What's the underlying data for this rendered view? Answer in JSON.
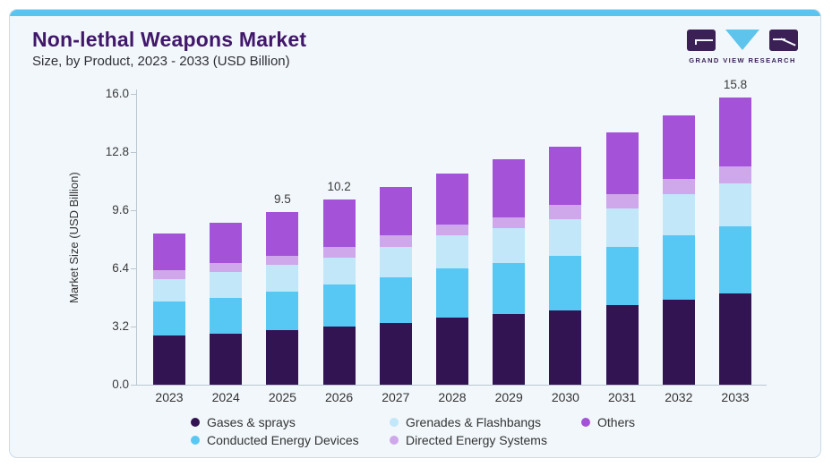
{
  "logo": {
    "text": "GRAND VIEW RESEARCH"
  },
  "colors": {
    "accent_bar": "#5ac3ee",
    "card_background": "#f2f7fb",
    "title_text": "#41176b",
    "logo_purple": "#3a2055",
    "logo_triangle": "#5ec4ec",
    "axis_line": "#b9c6d0",
    "body_text": "#333333"
  },
  "chart_data": {
    "type": "bar",
    "stacked": true,
    "title": "Non-lethal Weapons Market",
    "subtitle": "Size, by Product, 2023 - 2033 (USD Billion)",
    "xlabel": "",
    "ylabel": "Market Size (USD Billion)",
    "ylim": [
      0,
      16.0
    ],
    "ytick_values": [
      0,
      3.2,
      6.4,
      9.6,
      12.8,
      16.0
    ],
    "ytick_labels": [
      "0.0",
      "3.2",
      "6.4",
      "9.6",
      "12.8",
      "16.0"
    ],
    "grid": false,
    "legend_position": "bottom",
    "categories": [
      "2023",
      "2024",
      "2025",
      "2026",
      "2027",
      "2028",
      "2029",
      "2030",
      "2031",
      "2032",
      "2033"
    ],
    "series": [
      {
        "name": "Gases & sprays",
        "color": "#331452",
        "values": [
          2.7,
          2.8,
          3.0,
          3.2,
          3.4,
          3.7,
          3.9,
          4.1,
          4.4,
          4.7,
          5.0
        ]
      },
      {
        "name": "Conducted Energy Devices",
        "color": "#57c8f4",
        "values": [
          1.9,
          2.0,
          2.1,
          2.3,
          2.5,
          2.7,
          2.8,
          3.0,
          3.2,
          3.5,
          3.7
        ]
      },
      {
        "name": "Grenades & Flashbangs",
        "color": "#c1e7f9",
        "values": [
          1.2,
          1.4,
          1.5,
          1.5,
          1.7,
          1.8,
          1.9,
          2.0,
          2.1,
          2.3,
          2.4
        ]
      },
      {
        "name": "Directed Energy Systems",
        "color": "#cfa7eb",
        "values": [
          0.5,
          0.5,
          0.5,
          0.6,
          0.6,
          0.6,
          0.6,
          0.8,
          0.8,
          0.8,
          0.9
        ]
      },
      {
        "name": "Others",
        "color": "#a452d8",
        "values": [
          2.0,
          2.2,
          2.4,
          2.6,
          2.7,
          2.8,
          3.2,
          3.2,
          3.4,
          3.5,
          3.8
        ]
      }
    ],
    "totals": [
      8.3,
      8.9,
      9.5,
      10.2,
      10.9,
      11.6,
      12.4,
      13.1,
      13.9,
      14.8,
      15.8
    ],
    "bar_value_labels": {
      "2025": "9.5",
      "2026": "10.2",
      "2033": "15.8"
    },
    "legend_display_order": [
      "Gases & sprays",
      "Grenades & Flashbangs",
      "Others",
      "Conducted Energy Devices",
      "Directed Energy Systems"
    ]
  }
}
